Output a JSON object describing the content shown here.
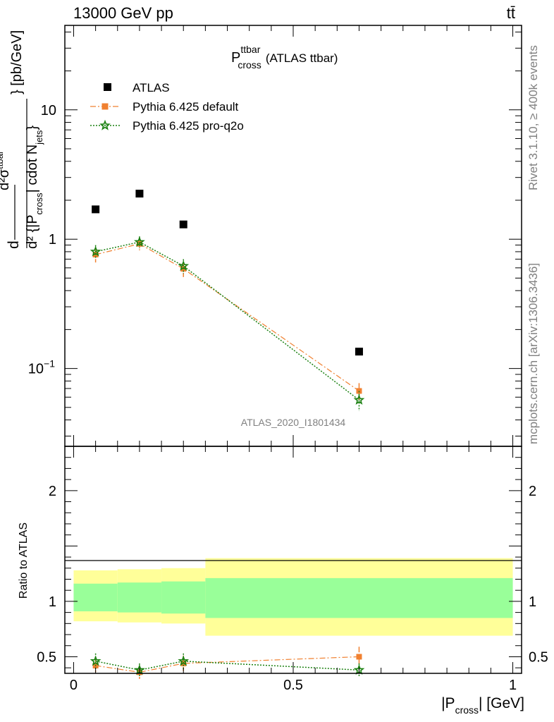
{
  "header": {
    "beam": "13000 GeV pp",
    "process": "tt̄"
  },
  "side_text": {
    "rivet": "Rivet 3.1.10, ≥ 400k events",
    "mcplots": "mcplots.cern.ch [arXiv:1306.3436]"
  },
  "chart_data": [
    {
      "type": "scatter",
      "title": "P",
      "title_sup": "ttbar",
      "title_sub": "cross",
      "title_suffix": "(ATLAS ttbar)",
      "analysis_label": "ATLAS_2020_I1801434",
      "ylabel_parts": {
        "d": "d",
        "num": "d²σ",
        "num_sup": "ttbar",
        "den": "d² {|P",
        "den_sub": "cross",
        "den_mid": "| cdot N",
        "den_sub2": "jets",
        "den_end": "}",
        "unit": "[pb/GeV]"
      },
      "y_scale": "log",
      "ylim": [
        0.025,
        45
      ],
      "xlim": [
        -0.02,
        1.02
      ],
      "y_ticks": [
        {
          "value": 0.1,
          "base": "10",
          "exp": "−1"
        },
        {
          "value": 1,
          "base": "1",
          "exp": ""
        },
        {
          "value": 10,
          "base": "10",
          "exp": ""
        }
      ],
      "legend": {
        "placement": "top-left",
        "entries": [
          {
            "name": "ATLAS",
            "color": "#000000",
            "marker": "square"
          },
          {
            "name": "Pythia 6.425 default",
            "color": "#f08030",
            "marker": "square"
          },
          {
            "name": "Pythia 6.425 pro-q2o",
            "color": "#1a8010",
            "marker": "star"
          }
        ]
      },
      "series": [
        {
          "name": "ATLAS",
          "color": "#000000",
          "x": [
            0.05,
            0.15,
            0.25,
            0.65
          ],
          "values": [
            1.7,
            2.25,
            1.3,
            0.135
          ],
          "errors": [
            0.0,
            0.0,
            0.0,
            0.0
          ]
        },
        {
          "name": "Pythia 6.425 default",
          "color": "#f08030",
          "x": [
            0.05,
            0.15,
            0.25,
            0.65
          ],
          "values": [
            0.76,
            0.92,
            0.59,
            0.067
          ],
          "errors": [
            0.1,
            0.1,
            0.08,
            0.01
          ]
        },
        {
          "name": "Pythia 6.425 pro-q2o",
          "color": "#1a8010",
          "x": [
            0.05,
            0.15,
            0.25,
            0.65
          ],
          "values": [
            0.8,
            0.95,
            0.62,
            0.057
          ],
          "errors": [
            0.1,
            0.1,
            0.08,
            0.01
          ]
        }
      ]
    },
    {
      "type": "scatter",
      "ylabel": "Ratio to ATLAS",
      "xlabel_parts": {
        "pre": "|P",
        "sub": "cross",
        "post": "| [GeV]"
      },
      "ylim": [
        0.35,
        2.4
      ],
      "xlim": [
        -0.02,
        1.02
      ],
      "x_ticks": [
        {
          "value": 0,
          "label": "0"
        },
        {
          "value": 0.5,
          "label": "0.5"
        },
        {
          "value": 1,
          "label": "1"
        }
      ],
      "y_ticks": [
        {
          "value": 0.5,
          "label": "0.5"
        },
        {
          "value": 1,
          "label": "1"
        },
        {
          "value": 2,
          "label": "2"
        }
      ],
      "uncertainty_bands": {
        "edges": [
          0,
          0.1,
          0.2,
          0.3,
          1.0
        ],
        "yellow_lo": [
          0.82,
          0.81,
          0.8,
          0.69
        ],
        "yellow_hi": [
          1.28,
          1.29,
          1.3,
          1.39
        ],
        "green_lo": [
          0.91,
          0.9,
          0.89,
          0.85
        ],
        "green_hi": [
          1.16,
          1.17,
          1.18,
          1.21
        ],
        "yellow_color": "#ffff99",
        "green_color": "#99ff99"
      },
      "series": [
        {
          "name": "Pythia 6.425 default",
          "color": "#f08030",
          "x": [
            0.05,
            0.15,
            0.25,
            0.65
          ],
          "values": [
            0.42,
            0.36,
            0.44,
            0.5
          ],
          "errors": [
            0.06,
            0.06,
            0.07,
            0.09
          ]
        },
        {
          "name": "Pythia 6.425 pro-q2o",
          "color": "#1a8010",
          "x": [
            0.05,
            0.15,
            0.25,
            0.65
          ],
          "values": [
            0.46,
            0.38,
            0.46,
            0.38
          ],
          "errors": [
            0.07,
            0.06,
            0.07,
            0.06
          ]
        }
      ]
    }
  ]
}
